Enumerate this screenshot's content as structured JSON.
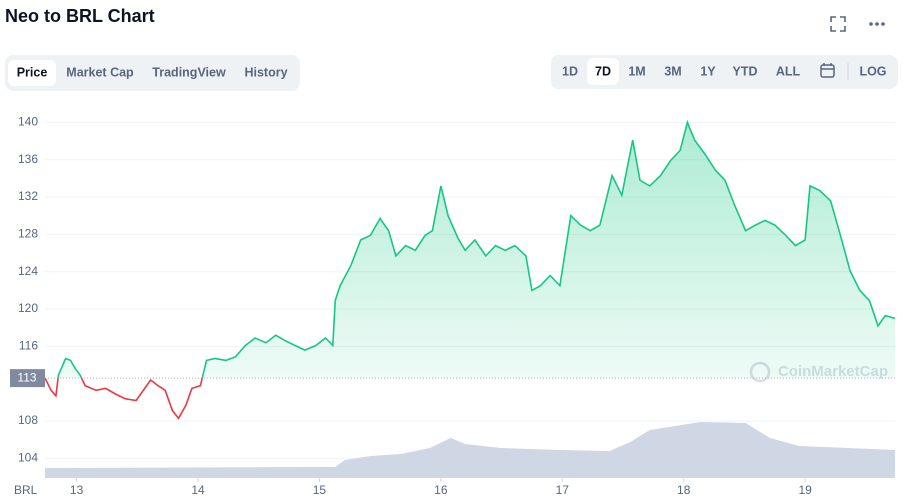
{
  "chart_data": {
    "type": "line",
    "title": "Neo to BRL Chart",
    "color": "#16c784",
    "down_color": "#ea3943",
    "x": [
      12.74,
      12.79,
      12.83,
      12.85,
      12.91,
      12.95,
      12.99,
      13.03,
      13.07,
      13.16,
      13.24,
      13.32,
      13.4,
      13.49,
      13.54,
      13.61,
      13.67,
      13.73,
      13.79,
      13.84,
      13.9,
      13.95,
      14.02,
      14.07,
      14.14,
      14.23,
      14.31,
      14.39,
      14.47,
      14.56,
      14.64,
      14.72,
      14.8,
      14.88,
      14.97,
      15.05,
      15.11,
      15.13,
      15.17,
      15.26,
      15.34,
      15.42,
      15.5,
      15.57,
      15.63,
      15.71,
      15.79,
      15.87,
      15.93,
      16.0,
      16.06,
      16.14,
      16.2,
      16.28,
      16.37,
      16.45,
      16.53,
      16.61,
      16.7,
      16.75,
      16.82,
      16.9,
      16.98,
      17.07,
      17.15,
      17.23,
      17.31,
      17.41,
      17.49,
      17.58,
      17.64,
      17.72,
      17.81,
      17.89,
      17.97,
      18.03,
      18.09,
      18.18,
      18.26,
      18.34,
      18.42,
      18.51,
      18.59,
      18.67,
      18.75,
      18.84,
      18.92,
      19.0,
      19.04,
      19.12,
      19.21,
      19.29,
      19.37,
      19.45,
      19.53,
      19.6,
      19.66,
      19.74
    ],
    "values": [
      112.6,
      111.3,
      110.7,
      112.9,
      114.7,
      114.5,
      113.6,
      112.9,
      111.8,
      111.3,
      111.5,
      110.9,
      110.4,
      110.2,
      111.1,
      112.4,
      111.8,
      111.3,
      109.1,
      108.3,
      109.7,
      111.5,
      111.8,
      114.5,
      114.7,
      114.5,
      114.9,
      116.1,
      116.9,
      116.4,
      117.2,
      116.6,
      116.1,
      115.6,
      116.1,
      116.9,
      116.1,
      120.9,
      122.5,
      124.7,
      127.4,
      127.9,
      129.7,
      128.4,
      125.7,
      126.8,
      126.3,
      127.9,
      128.4,
      133.2,
      130.0,
      127.6,
      126.3,
      127.4,
      125.7,
      126.8,
      126.3,
      126.8,
      125.7,
      122.0,
      122.5,
      123.6,
      122.5,
      130.0,
      129.0,
      128.4,
      129.0,
      134.3,
      132.2,
      138.1,
      133.8,
      133.2,
      134.3,
      135.9,
      137.0,
      140.0,
      138.1,
      136.5,
      134.9,
      133.8,
      131.1,
      128.4,
      129.0,
      129.5,
      129.0,
      127.9,
      126.8,
      127.4,
      133.2,
      132.7,
      131.6,
      127.9,
      124.1,
      122.0,
      120.9,
      118.2,
      119.3,
      119.0
    ],
    "reference": {
      "value": 112.6,
      "label": "113"
    },
    "volume": {
      "color": "#cfd6e4",
      "lim": [
        0,
        100
      ],
      "x": [
        12.74,
        15.13,
        15.21,
        15.42,
        15.67,
        15.91,
        16.08,
        16.2,
        16.49,
        16.98,
        17.39,
        17.56,
        17.72,
        18.14,
        18.51,
        18.71,
        18.95,
        19.74
      ],
      "values": [
        10,
        11,
        18,
        22,
        24,
        30,
        40,
        34,
        30,
        28,
        27,
        36,
        48,
        56,
        55,
        40,
        32,
        28
      ]
    },
    "xlim": [
      12.74,
      19.74
    ],
    "xticks": [
      13,
      14,
      15,
      16,
      17,
      18,
      19
    ],
    "ylim": [
      101.9,
      142.4
    ],
    "yticks": [
      104,
      108,
      116,
      120,
      124,
      128,
      132,
      136,
      140
    ],
    "grid": true,
    "currency_label": "BRL",
    "watermark": "CoinMarketCap"
  },
  "ui": {
    "tabs": [
      "Price",
      "Market Cap",
      "TradingView",
      "History"
    ],
    "selected_tab": 0,
    "ranges": [
      "1D",
      "7D",
      "1M",
      "3M",
      "1Y",
      "YTD",
      "ALL"
    ],
    "selected_range": 1,
    "log": "LOG"
  }
}
